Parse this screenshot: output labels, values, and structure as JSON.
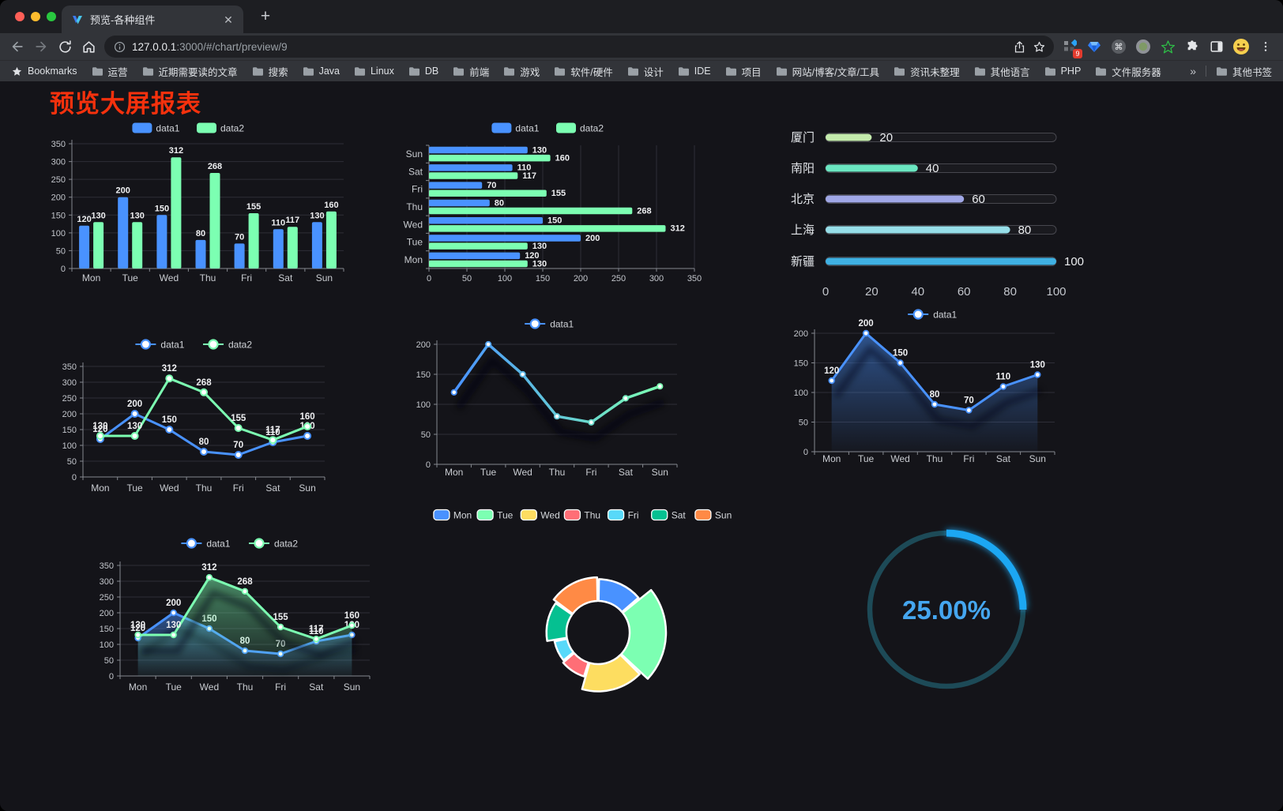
{
  "tabbar": {
    "tab_title": "预览-各种组件",
    "close_glyph": "✕",
    "new_tab_glyph": "+"
  },
  "toolbar": {
    "url_host": "127.0.0.1",
    "url_rest": ":3000/#/chart/preview/9",
    "ext_badge": "9"
  },
  "bookmarks": {
    "bookmarks_label": "Bookmarks",
    "folders": [
      "运营",
      "近期需要读的文章",
      "搜索",
      "Java",
      "Linux",
      "DB",
      "前端",
      "游戏",
      "软件/硬件",
      "设计",
      "IDE",
      "项目",
      "网站/博客/文章/工具",
      "资讯未整理",
      "其他语言",
      "PHP",
      "文件服务器"
    ],
    "overflow_glyph": "»",
    "other_bookmarks_label": "其他书签"
  },
  "page": {
    "title": "预览大屏报表",
    "title_color": "#f5310d"
  },
  "chart_data": [
    {
      "id": "bar-vertical",
      "type": "bar",
      "categories": [
        "Mon",
        "Tue",
        "Wed",
        "Thu",
        "Fri",
        "Sat",
        "Sun"
      ],
      "series": [
        {
          "name": "data1",
          "color": "#4992ff",
          "values": [
            120,
            200,
            150,
            80,
            70,
            110,
            130
          ]
        },
        {
          "name": "data2",
          "color": "#7cffb2",
          "values": [
            130,
            130,
            312,
            268,
            155,
            117,
            160
          ]
        }
      ],
      "ylim": [
        0,
        350
      ],
      "ytick_step": 50,
      "legend_position": "top",
      "grid": true,
      "show_labels": true
    },
    {
      "id": "bar-horizontal",
      "type": "bar-horizontal",
      "categories": [
        "Mon",
        "Tue",
        "Wed",
        "Thu",
        "Fri",
        "Sat",
        "Sun"
      ],
      "series": [
        {
          "name": "data1",
          "color": "#4992ff",
          "values": [
            120,
            200,
            150,
            80,
            70,
            110,
            130
          ]
        },
        {
          "name": "data2",
          "color": "#7cffb2",
          "values": [
            130,
            130,
            312,
            268,
            155,
            117,
            160
          ]
        }
      ],
      "xlim": [
        0,
        350
      ],
      "xtick_step": 50,
      "legend_position": "top",
      "grid": true,
      "show_labels": true
    },
    {
      "id": "progress-list",
      "type": "progress-bar",
      "categories": [
        "厦门",
        "南阳",
        "北京",
        "上海",
        "新疆"
      ],
      "values": [
        20,
        40,
        60,
        80,
        100
      ],
      "colors": [
        "#c4ebad",
        "#6be6c1",
        "#a0a7e6",
        "#96dee8",
        "#3fb1e3"
      ],
      "xticks": [
        0,
        20,
        40,
        60,
        80,
        100
      ],
      "xlim": [
        0,
        100
      ],
      "show_labels": true
    },
    {
      "id": "line-multi",
      "type": "line",
      "categories": [
        "Mon",
        "Tue",
        "Wed",
        "Thu",
        "Fri",
        "Sat",
        "Sun"
      ],
      "series": [
        {
          "name": "data1",
          "color": "#4992ff",
          "values": [
            120,
            200,
            150,
            80,
            70,
            110,
            130
          ]
        },
        {
          "name": "data2",
          "color": "#7cffb2",
          "values": [
            130,
            130,
            312,
            268,
            155,
            117,
            160
          ]
        }
      ],
      "ylim": [
        0,
        350
      ],
      "ytick_step": 50,
      "legend_position": "top",
      "grid": true,
      "show_labels": true
    },
    {
      "id": "line-gradient",
      "type": "line-gradient",
      "categories": [
        "Mon",
        "Tue",
        "Wed",
        "Thu",
        "Fri",
        "Sat",
        "Sun"
      ],
      "series": [
        {
          "name": "data1",
          "gradient": [
            "#4992ff",
            "#7cffb2"
          ],
          "values": [
            120,
            200,
            150,
            80,
            70,
            110,
            130
          ]
        }
      ],
      "ylim": [
        0,
        200
      ],
      "ytick_step": 50,
      "legend_position": "top",
      "grid": true,
      "show_labels": false
    },
    {
      "id": "area-single",
      "type": "area",
      "categories": [
        "Mon",
        "Tue",
        "Wed",
        "Thu",
        "Fri",
        "Sat",
        "Sun"
      ],
      "series": [
        {
          "name": "data1",
          "color": "#4992ff",
          "values": [
            120,
            200,
            150,
            80,
            70,
            110,
            130
          ]
        }
      ],
      "ylim": [
        0,
        200
      ],
      "ytick_step": 50,
      "legend_position": "top",
      "grid": true,
      "show_labels": true
    },
    {
      "id": "area-multi",
      "type": "area",
      "categories": [
        "Mon",
        "Tue",
        "Wed",
        "Thu",
        "Fri",
        "Sat",
        "Sun"
      ],
      "series": [
        {
          "name": "data1",
          "color": "#4992ff",
          "values": [
            120,
            200,
            150,
            80,
            70,
            110,
            130
          ]
        },
        {
          "name": "data2",
          "color": "#7cffb2",
          "values": [
            130,
            130,
            312,
            268,
            155,
            117,
            160
          ]
        }
      ],
      "ylim": [
        0,
        350
      ],
      "ytick_step": 50,
      "legend_position": "top",
      "grid": true,
      "show_labels": true
    },
    {
      "id": "rose-donut",
      "type": "pie",
      "mode": "rose-donut",
      "categories": [
        "Mon",
        "Tue",
        "Wed",
        "Thu",
        "Fri",
        "Sat",
        "Sun"
      ],
      "values": [
        120,
        200,
        150,
        80,
        70,
        110,
        130
      ],
      "colors": [
        "#4992ff",
        "#7cffb2",
        "#fddd60",
        "#ff6e76",
        "#58d9f9",
        "#05c091",
        "#ff8a45"
      ],
      "legend_position": "top"
    },
    {
      "id": "gauge",
      "type": "gauge",
      "value": 25,
      "label": "25.00%",
      "color": "#1aa7f3",
      "track_color": "#1d4a57",
      "text_color": "#45a6ef"
    }
  ]
}
